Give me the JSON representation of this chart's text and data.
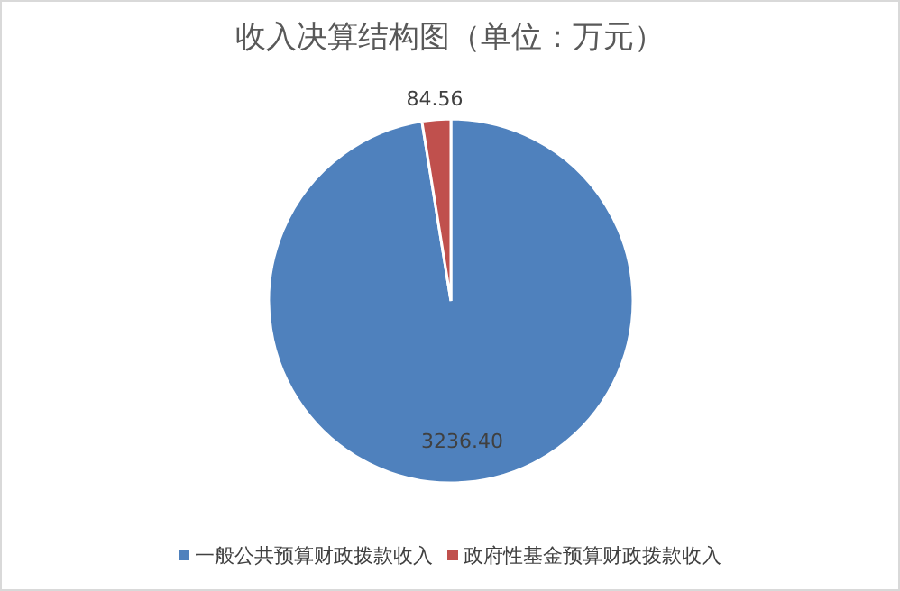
{
  "chart_data": {
    "type": "pie",
    "title": "收入决算结构图（单位：万元）",
    "categories": [
      "一般公共预算财政拨款收入",
      "政府性基金预算财政拨款收入"
    ],
    "values": [
      3236.4,
      84.56
    ],
    "value_labels": [
      "3236.40",
      "84.56"
    ],
    "colors": [
      "#4f81bd",
      "#c0504d"
    ],
    "legend": "bottom"
  }
}
